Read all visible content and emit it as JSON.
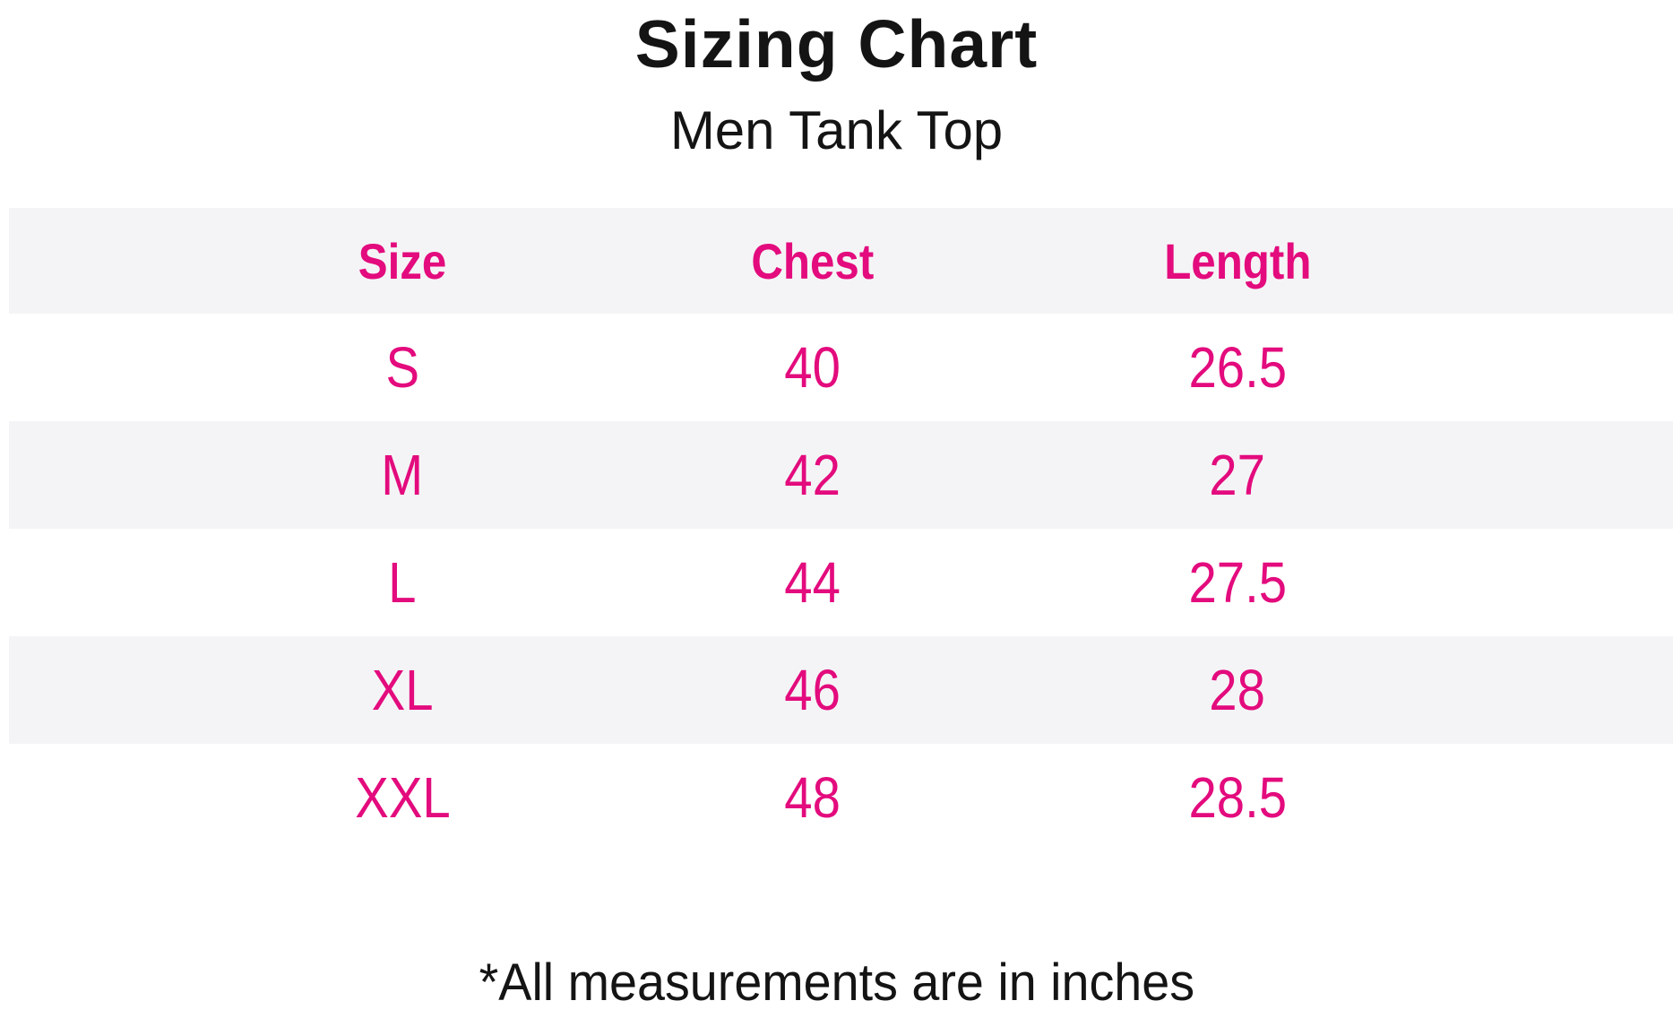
{
  "header": {
    "title": "Sizing Chart",
    "subtitle": "Men Tank Top"
  },
  "chart_data": {
    "type": "table",
    "title": "Sizing Chart",
    "subtitle": "Men Tank Top",
    "columns": [
      "Size",
      "Chest",
      "Length"
    ],
    "rows": [
      [
        "S",
        "40",
        "26.5"
      ],
      [
        "M",
        "42",
        "27"
      ],
      [
        "L",
        "44",
        "27.5"
      ],
      [
        "XL",
        "46",
        "28"
      ],
      [
        "XXL",
        "48",
        "28.5"
      ]
    ],
    "footnote": "*All measurements are in inches"
  },
  "colors": {
    "accent_pink": "#e30b7d",
    "row_alt_gray": "#f4f4f6",
    "text_black": "#141414",
    "background": "#ffffff"
  }
}
